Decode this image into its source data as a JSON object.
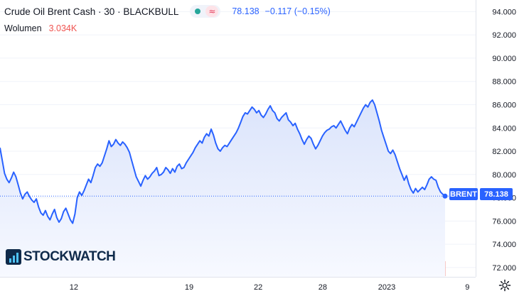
{
  "header": {
    "title": "Crude Oil Brent Cash · 30 · BLACKBULL",
    "last_price": "78.138",
    "change": "−0.117 (−0.15%)",
    "indicator_icons": [
      "status-dot-icon",
      "wave-icon"
    ]
  },
  "volume": {
    "label": "Wolumen",
    "value": "3.034K"
  },
  "watermark": {
    "text": "STOCKWATCH"
  },
  "price_tag": {
    "label": "BRENT",
    "value": "78.138"
  },
  "colors": {
    "line": "#2962ff",
    "area_top": "#dbe4fb",
    "area_bottom": "#f7f9ff",
    "volume_up": "#8fd0c6",
    "volume_down": "#f2a7a4",
    "tag_bg": "#2962ff",
    "grid": "#f0f3fa"
  },
  "chart_data": {
    "type": "area",
    "title": "Crude Oil Brent Cash · 30 · BLACKBULL",
    "xlabel": "",
    "ylabel": "",
    "x_tick_labels": [
      "12",
      "19",
      "22",
      "28",
      "2023",
      "9"
    ],
    "y_tick_labels": [
      "72.000",
      "74.000",
      "76.000",
      "78.000",
      "80.000",
      "82.000",
      "84.000",
      "86.000",
      "88.000",
      "90.000",
      "92.000",
      "94.000"
    ],
    "ylim": [
      71.2,
      95.0
    ],
    "grid": true,
    "last_value": 78.138,
    "series": [
      {
        "values": [
          82.3,
          81.2,
          80.1,
          79.6,
          79.3,
          79.7,
          80.2,
          79.8,
          79.1,
          78.4,
          77.9,
          78.3,
          78.5,
          78.1,
          77.8,
          77.6,
          77.9,
          77.2,
          76.7,
          76.5,
          76.9,
          76.4,
          76.1,
          76.6,
          77.0,
          76.3,
          75.9,
          76.2,
          76.8,
          77.1,
          76.6,
          76.1,
          75.8,
          76.6,
          78.0,
          78.5,
          78.2,
          78.6,
          79.1,
          79.6,
          79.3,
          79.9,
          80.6,
          80.9,
          80.7,
          81.0,
          81.6,
          82.2,
          82.9,
          82.4,
          82.6,
          83.0,
          82.7,
          82.5,
          82.8,
          82.6,
          82.3,
          81.9,
          81.2,
          80.5,
          79.8,
          79.4,
          79.0,
          79.5,
          79.9,
          79.6,
          79.8,
          80.1,
          80.3,
          80.6,
          79.9,
          80.0,
          80.2,
          80.6,
          80.4,
          80.1,
          80.5,
          80.2,
          80.7,
          80.9,
          80.5,
          80.6,
          81.0,
          81.3,
          81.6,
          81.9,
          82.3,
          82.6,
          82.9,
          82.7,
          83.2,
          83.5,
          83.3,
          83.9,
          83.4,
          82.7,
          82.2,
          82.0,
          82.3,
          82.5,
          82.4,
          82.7,
          83.0,
          83.3,
          83.6,
          84.0,
          84.5,
          85.0,
          85.3,
          85.2,
          85.5,
          85.8,
          85.6,
          85.3,
          85.5,
          85.1,
          84.9,
          85.2,
          85.6,
          85.9,
          85.5,
          85.3,
          84.8,
          84.6,
          84.9,
          85.1,
          85.3,
          84.7,
          84.5,
          84.2,
          84.4,
          83.9,
          83.5,
          83.0,
          82.6,
          83.0,
          83.3,
          83.1,
          82.6,
          82.2,
          82.5,
          82.9,
          83.3,
          83.6,
          83.8,
          83.9,
          84.1,
          84.2,
          84.0,
          84.3,
          84.6,
          84.2,
          83.8,
          83.5,
          84.0,
          84.3,
          84.1,
          84.5,
          84.9,
          85.3,
          85.7,
          86.0,
          85.8,
          86.2,
          86.4,
          86.0,
          85.3,
          84.6,
          83.8,
          83.2,
          82.6,
          82.0,
          81.8,
          82.1,
          81.7,
          81.1,
          80.5,
          80.0,
          79.5,
          79.9,
          79.2,
          78.7,
          78.4,
          78.8,
          78.5,
          78.7,
          78.9,
          78.7,
          79.1,
          79.6,
          79.8,
          79.6,
          79.5,
          78.9,
          78.5,
          78.3,
          78.138
        ]
      }
    ]
  }
}
